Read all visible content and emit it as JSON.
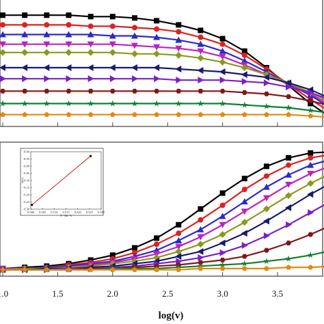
{
  "chart_data": [
    {
      "type": "line",
      "panel": "top",
      "xlim": [
        1.0,
        4.0
      ],
      "ylim": [
        0,
        100
      ],
      "x": [
        1.0,
        1.2,
        1.4,
        1.6,
        1.8,
        2.0,
        2.2,
        2.4,
        2.6,
        2.8,
        3.0,
        3.2,
        3.4,
        3.6,
        3.8,
        4.0
      ],
      "series": [
        {
          "color": "#000000",
          "marker": "square",
          "values": [
            88,
            88,
            88,
            88,
            87,
            87,
            86,
            84,
            81,
            77,
            71,
            62,
            50,
            37,
            24,
            13
          ]
        },
        {
          "color": "#e02020",
          "marker": "circle",
          "values": [
            81,
            81,
            81,
            81,
            80,
            80,
            79,
            78,
            76,
            72,
            67,
            59,
            49,
            38,
            27,
            17
          ]
        },
        {
          "color": "#2a2ad0",
          "marker": "triangle-up",
          "values": [
            74,
            74,
            74,
            74,
            74,
            73,
            73,
            72,
            70,
            67,
            62,
            55,
            47,
            38,
            30,
            20
          ]
        },
        {
          "color": "#c020c0",
          "marker": "triangle-down",
          "values": [
            67,
            67,
            67,
            67,
            67,
            67,
            66,
            65,
            64,
            62,
            58,
            52,
            45,
            38,
            31,
            22
          ]
        },
        {
          "color": "#8a9a1a",
          "marker": "diamond",
          "values": [
            61,
            61,
            61,
            61,
            61,
            61,
            60,
            60,
            59,
            57,
            54,
            50,
            45,
            39,
            32,
            24
          ]
        },
        {
          "color": "#1a1a70",
          "marker": "triangle-left",
          "values": [
            50,
            50,
            50,
            50,
            50,
            50,
            50,
            50,
            49,
            48,
            47,
            45,
            43,
            39,
            34,
            27
          ]
        },
        {
          "color": "#7a20c8",
          "marker": "triangle-right",
          "values": [
            42,
            42,
            42,
            42,
            42,
            42,
            42,
            42,
            41,
            41,
            41,
            40,
            39,
            36,
            32,
            26
          ]
        },
        {
          "color": "#801818",
          "marker": "hexagon",
          "values": [
            33,
            33,
            33,
            33,
            33,
            33,
            33,
            33,
            33,
            33,
            33,
            32,
            31,
            29,
            26,
            22
          ]
        },
        {
          "color": "#108030",
          "marker": "star",
          "values": [
            24,
            24,
            24,
            24,
            24,
            24,
            24,
            24,
            24,
            24,
            24,
            23,
            22,
            21,
            19,
            17
          ]
        },
        {
          "color": "#e08a10",
          "marker": "pentagon",
          "values": [
            16,
            16,
            16,
            16,
            16,
            16,
            16,
            16,
            16,
            16,
            16,
            16,
            16,
            16,
            15,
            14
          ]
        }
      ]
    },
    {
      "type": "line",
      "panel": "bottom",
      "xlabel": "log(v)",
      "xlim": [
        1.0,
        4.0
      ],
      "ylim": [
        0,
        100
      ],
      "x_ticks": [
        "1.0",
        "1.5",
        "2.0",
        "2.5",
        "3.0",
        "3.5"
      ],
      "x": [
        1.0,
        1.2,
        1.4,
        1.6,
        1.8,
        2.0,
        2.2,
        2.4,
        2.6,
        2.8,
        3.0,
        3.2,
        3.4,
        3.6,
        3.8,
        4.0
      ],
      "series": [
        {
          "color": "#000000",
          "marker": "square",
          "values": [
            4,
            5,
            6,
            8,
            11,
            15,
            21,
            29,
            40,
            53,
            66,
            78,
            88,
            95,
            99,
            100
          ]
        },
        {
          "color": "#e02020",
          "marker": "circle",
          "values": [
            4,
            4,
            5,
            7,
            9,
            12,
            17,
            24,
            33,
            44,
            56,
            69,
            80,
            89,
            95,
            98
          ]
        },
        {
          "color": "#2a2ad0",
          "marker": "triangle-up",
          "values": [
            4,
            4,
            5,
            6,
            8,
            10,
            14,
            19,
            27,
            36,
            47,
            59,
            71,
            81,
            89,
            94
          ]
        },
        {
          "color": "#c020c0",
          "marker": "triangle-down",
          "values": [
            4,
            4,
            4,
            5,
            7,
            9,
            12,
            16,
            22,
            30,
            40,
            51,
            62,
            73,
            82,
            89
          ]
        },
        {
          "color": "#8a9a1a",
          "marker": "diamond",
          "values": [
            3,
            4,
            4,
            5,
            6,
            8,
            10,
            13,
            18,
            24,
            32,
            42,
            53,
            64,
            74,
            83
          ]
        },
        {
          "color": "#1a1a70",
          "marker": "triangle-left",
          "values": [
            3,
            3,
            4,
            4,
            5,
            6,
            8,
            10,
            14,
            18,
            25,
            33,
            43,
            54,
            65,
            75
          ]
        },
        {
          "color": "#7a20c8",
          "marker": "triangle-right",
          "values": [
            3,
            3,
            3,
            4,
            4,
            5,
            6,
            8,
            10,
            13,
            17,
            23,
            31,
            40,
            50,
            60
          ]
        },
        {
          "color": "#801818",
          "marker": "hexagon",
          "values": [
            3,
            3,
            3,
            3,
            4,
            4,
            5,
            6,
            7,
            9,
            11,
            14,
            19,
            25,
            32,
            40
          ]
        },
        {
          "color": "#108030",
          "marker": "star",
          "values": [
            3,
            3,
            3,
            3,
            3,
            4,
            4,
            4,
            5,
            6,
            7,
            8,
            10,
            12,
            15,
            19
          ]
        },
        {
          "color": "#e08a10",
          "marker": "pentagon",
          "values": [
            3,
            3,
            3,
            3,
            3,
            3,
            3,
            3,
            3,
            4,
            4,
            4,
            4,
            5,
            5,
            6
          ]
        }
      ]
    },
    {
      "type": "scatter",
      "panel": "inset",
      "xlabel": "T⁻¹(K⁻¹)",
      "ylabel": "ln(τ)",
      "xlim": [
        0.5,
        0.53
      ],
      "ylim": [
        -9.3,
        -8.9
      ],
      "x_ticks": [
        "0.500",
        "0.505",
        "0.510",
        "0.515",
        "0.520",
        "0.525",
        "0.530"
      ],
      "y_ticks": [
        "-8.90",
        "-8.95",
        "-9.00",
        "-9.05",
        "-9.10",
        "-9.15",
        "-9.20",
        "-9.25",
        "-9.30"
      ],
      "points": [
        {
          "x": 0.5005,
          "y": -9.27
        },
        {
          "x": 0.5255,
          "y": -8.93
        }
      ],
      "line_color": "#d02020"
    }
  ]
}
